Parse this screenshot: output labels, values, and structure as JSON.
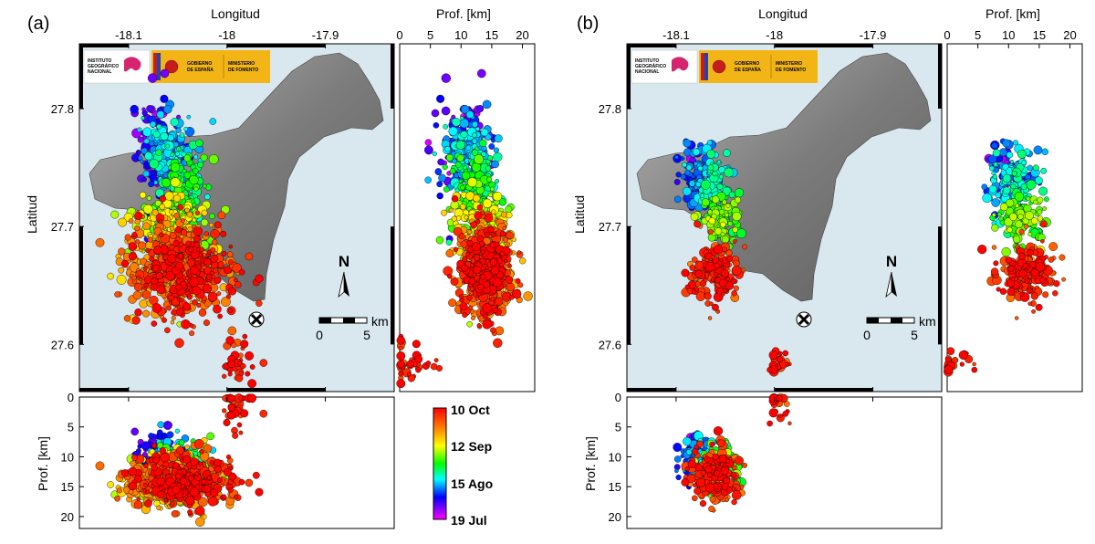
{
  "panels": [
    {
      "id": "a",
      "label": "(a)",
      "x_title": "Longitud",
      "y_title": "Latitud",
      "depth_title": "Prof. [km]",
      "depth_title_bottom": "Prof. [km]",
      "lon_ticks": [
        "-18.1",
        "-18",
        "-17.9"
      ],
      "lat_ticks": [
        "27.8",
        "27.7",
        "27.6"
      ],
      "depth_ticks_top": [
        "0",
        "5",
        "10",
        "15",
        "20"
      ],
      "depth_ticks_left": [
        "0",
        "5",
        "10",
        "15",
        "20"
      ],
      "scale_label": "km",
      "scale_ticks": [
        "0",
        "5"
      ],
      "north": "N",
      "logo": {
        "ign_lines": [
          "INSTITUTO",
          "GEOGRÁFICO",
          "NACIONAL"
        ],
        "gob_lines": [
          "GOBIERNO",
          "DE ESPAÑA"
        ],
        "min_lines": [
          "MINISTERIO",
          "DE FOMENTO"
        ]
      }
    },
    {
      "id": "b",
      "label": "(b)",
      "x_title": "Longitud",
      "y_title": "Latitud",
      "depth_title": "Prof. [km]",
      "depth_title_bottom": "Prof. [km]",
      "lon_ticks": [
        "-18.1",
        "-18",
        "-17.9"
      ],
      "lat_ticks": [
        "27.8",
        "27.7",
        "27.6"
      ],
      "depth_ticks_top": [
        "0",
        "5",
        "10",
        "15",
        "20"
      ],
      "depth_ticks_left": [
        "0",
        "5",
        "10",
        "15",
        "20"
      ],
      "scale_label": "km",
      "scale_ticks": [
        "0",
        "5"
      ],
      "north": "N",
      "logo": {
        "ign_lines": [
          "INSTITUTO",
          "GEOGRÁFICO",
          "NACIONAL"
        ],
        "gob_lines": [
          "GOBIERNO",
          "DE ESPAÑA"
        ],
        "min_lines": [
          "MINISTERIO",
          "DE FOMENTO"
        ]
      }
    }
  ],
  "colorbar": {
    "labels": [
      "10 Oct",
      "12 Sep",
      "15 Ago",
      "19 Jul"
    ],
    "stops": [
      "#ff0000",
      "#ff8000",
      "#ffff00",
      "#00ff00",
      "#00ffff",
      "#0000ff",
      "#ff00ff"
    ]
  },
  "colors": {
    "sea": "#d8e8ee",
    "island": "#8a8a8a",
    "island_dark": "#555555"
  },
  "chart_data": {
    "type": "scatter",
    "title": "",
    "xlabel": "Longitud",
    "ylabel": "Latitud",
    "xlim": [
      -18.15,
      -17.83
    ],
    "ylim": [
      27.56,
      27.855
    ],
    "depth_lim": [
      0,
      22
    ],
    "date_range": [
      "19 Jul",
      "10 Oct"
    ],
    "clusters_a": [
      {
        "lon": -18.06,
        "lat": 27.765,
        "depth": 11,
        "t": 0.28,
        "sd_lon": 0.012,
        "sd_lat": 0.012,
        "n": 160
      },
      {
        "lon": -18.075,
        "lat": 27.77,
        "depth": 10,
        "t": 0.1,
        "sd_lon": 0.01,
        "sd_lat": 0.02,
        "n": 90
      },
      {
        "lon": -18.045,
        "lat": 27.735,
        "depth": 12,
        "t": 0.45,
        "sd_lon": 0.013,
        "sd_lat": 0.015,
        "n": 150
      },
      {
        "lon": -18.06,
        "lat": 27.705,
        "depth": 13,
        "t": 0.62,
        "sd_lon": 0.018,
        "sd_lat": 0.013,
        "n": 160
      },
      {
        "lon": -18.06,
        "lat": 27.665,
        "depth": 14,
        "t": 0.8,
        "sd_lon": 0.022,
        "sd_lat": 0.018,
        "n": 300
      },
      {
        "lon": -18.04,
        "lat": 27.66,
        "depth": 14,
        "t": 0.95,
        "sd_lon": 0.025,
        "sd_lat": 0.02,
        "n": 380
      },
      {
        "lon": -17.99,
        "lat": 27.585,
        "depth": 1,
        "t": 0.98,
        "sd_lon": 0.01,
        "sd_lat": 0.008,
        "n": 40
      }
    ],
    "clusters_b": [
      {
        "lon": -18.082,
        "lat": 27.745,
        "depth": 10,
        "t": 0.2,
        "sd_lon": 0.008,
        "sd_lat": 0.014,
        "n": 90
      },
      {
        "lon": -18.06,
        "lat": 27.738,
        "depth": 11,
        "t": 0.35,
        "sd_lon": 0.01,
        "sd_lat": 0.014,
        "n": 90
      },
      {
        "lon": -18.055,
        "lat": 27.705,
        "depth": 12,
        "t": 0.55,
        "sd_lon": 0.01,
        "sd_lat": 0.012,
        "n": 110
      },
      {
        "lon": -18.06,
        "lat": 27.66,
        "depth": 13,
        "t": 0.95,
        "sd_lon": 0.012,
        "sd_lat": 0.012,
        "n": 180
      },
      {
        "lon": -17.995,
        "lat": 27.583,
        "depth": 1,
        "t": 0.98,
        "sd_lon": 0.004,
        "sd_lat": 0.005,
        "n": 22
      }
    ]
  }
}
